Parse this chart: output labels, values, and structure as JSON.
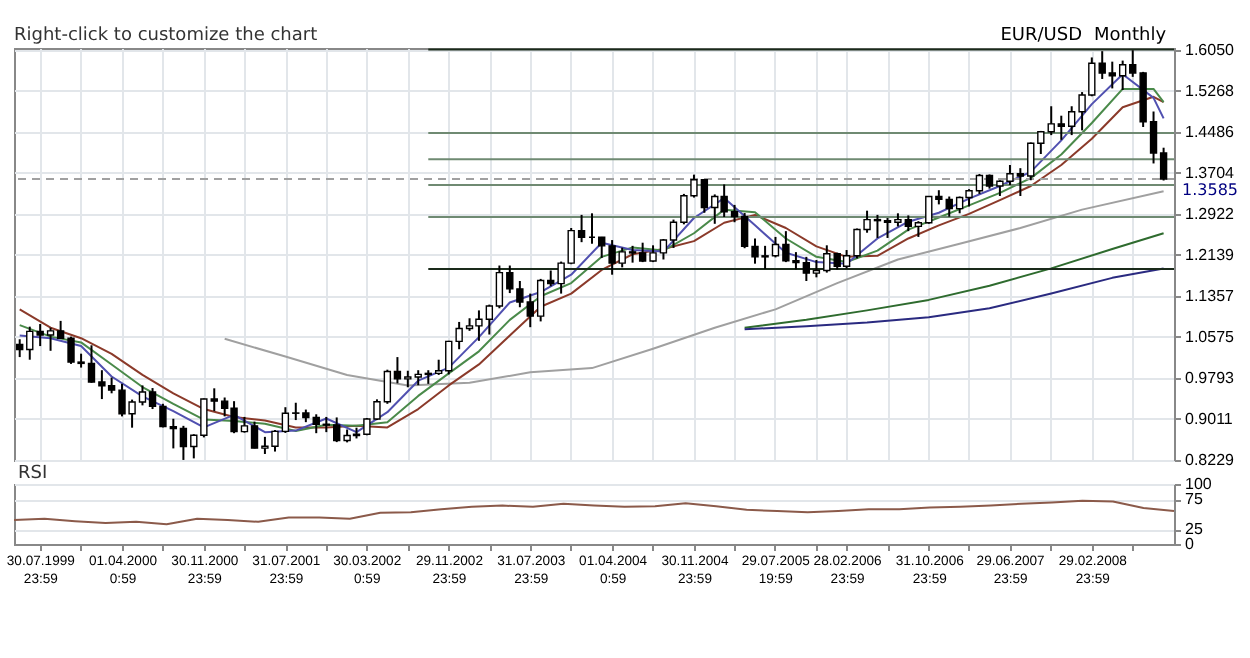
{
  "chart_data": [
    {
      "type": "candlestick",
      "title": "EUR/USD",
      "subtitle": "Monthly",
      "annotations": [
        "Right-click to customize the chart"
      ],
      "color": "#000000",
      "x": [
        "1999-06",
        "1999-07",
        "1999-08",
        "1999-09",
        "1999-10",
        "1999-11",
        "1999-12",
        "2000-01",
        "2000-02",
        "2000-03",
        "2000-04",
        "2000-05",
        "2000-06",
        "2000-07",
        "2000-08",
        "2000-09",
        "2000-10",
        "2000-11",
        "2000-12",
        "2001-01",
        "2001-02",
        "2001-03",
        "2001-04",
        "2001-05",
        "2001-06",
        "2001-07",
        "2001-08",
        "2001-09",
        "2001-10",
        "2001-11",
        "2001-12",
        "2002-01",
        "2002-02",
        "2002-03",
        "2002-04",
        "2002-05",
        "2002-06",
        "2002-07",
        "2002-08",
        "2002-09",
        "2002-10",
        "2002-11",
        "2002-12",
        "2003-01",
        "2003-02",
        "2003-03",
        "2003-04",
        "2003-05",
        "2003-06",
        "2003-07",
        "2003-08",
        "2003-09",
        "2003-10",
        "2003-11",
        "2003-12",
        "2004-01",
        "2004-02",
        "2004-03",
        "2004-04",
        "2004-05",
        "2004-06",
        "2004-07",
        "2004-08",
        "2004-09",
        "2004-10",
        "2004-11",
        "2004-12",
        "2005-01",
        "2005-02",
        "2005-03",
        "2005-04",
        "2005-05",
        "2005-06",
        "2005-07",
        "2005-08",
        "2005-09",
        "2005-10",
        "2005-11",
        "2005-12",
        "2006-01",
        "2006-02",
        "2006-03",
        "2006-04",
        "2006-05",
        "2006-06",
        "2006-07",
        "2006-08",
        "2006-09",
        "2006-10",
        "2006-11",
        "2006-12",
        "2007-01",
        "2007-02",
        "2007-03",
        "2007-04",
        "2007-05",
        "2007-06",
        "2007-07",
        "2007-08",
        "2007-09",
        "2007-10",
        "2007-11",
        "2007-12",
        "2008-01",
        "2008-02",
        "2008-03",
        "2008-04",
        "2008-05",
        "2008-06",
        "2008-07",
        "2008-08",
        "2008-09",
        "2008-10"
      ],
      "ohlc": [
        [
          1.043,
          1.053,
          1.019,
          1.0335
        ],
        [
          1.0335,
          1.077,
          1.014,
          1.068
        ],
        [
          1.068,
          1.082,
          1.04,
          1.061
        ],
        [
          1.061,
          1.075,
          1.031,
          1.069
        ],
        [
          1.069,
          1.088,
          1.054,
          1.055
        ],
        [
          1.055,
          1.058,
          1.006,
          1.0095
        ],
        [
          1.0095,
          1.0255,
          0.999,
          1.007
        ],
        [
          1.007,
          1.0415,
          0.97,
          0.9715
        ],
        [
          0.9715,
          0.994,
          0.939,
          0.9645
        ],
        [
          0.9645,
          0.98,
          0.95,
          0.956
        ],
        [
          0.956,
          0.968,
          0.906,
          0.911
        ],
        [
          0.911,
          0.938,
          0.8845,
          0.9335
        ],
        [
          0.9335,
          0.965,
          0.927,
          0.9525
        ],
        [
          0.9525,
          0.96,
          0.92,
          0.925
        ],
        [
          0.925,
          0.93,
          0.885,
          0.8865
        ],
        [
          0.8865,
          0.9015,
          0.845,
          0.883
        ],
        [
          0.883,
          0.888,
          0.823,
          0.8485
        ],
        [
          0.8485,
          0.872,
          0.826,
          0.87
        ],
        [
          0.87,
          0.94,
          0.866,
          0.939
        ],
        [
          0.939,
          0.9595,
          0.916,
          0.935
        ],
        [
          0.935,
          0.942,
          0.906,
          0.9215
        ],
        [
          0.9215,
          0.935,
          0.874,
          0.877
        ],
        [
          0.877,
          0.905,
          0.875,
          0.888
        ],
        [
          0.888,
          0.896,
          0.845,
          0.8455
        ],
        [
          0.8455,
          0.867,
          0.8344,
          0.849
        ],
        [
          0.849,
          0.88,
          0.839,
          0.8775
        ],
        [
          0.8775,
          0.9235,
          0.8745,
          0.912
        ],
        [
          0.912,
          0.932,
          0.899,
          0.9125
        ],
        [
          0.9125,
          0.919,
          0.895,
          0.904
        ],
        [
          0.904,
          0.91,
          0.874,
          0.891
        ],
        [
          0.891,
          0.905,
          0.876,
          0.8895
        ],
        [
          0.8895,
          0.904,
          0.857,
          0.86
        ],
        [
          0.86,
          0.881,
          0.8565,
          0.8695
        ],
        [
          0.8695,
          0.8845,
          0.864,
          0.872
        ],
        [
          0.872,
          0.903,
          0.87,
          0.901
        ],
        [
          0.901,
          0.9385,
          0.899,
          0.934
        ],
        [
          0.934,
          0.995,
          0.93,
          0.9915
        ],
        [
          0.9915,
          1.019,
          0.969,
          0.9775
        ],
        [
          0.9775,
          0.993,
          0.9615,
          0.981
        ],
        [
          0.981,
          0.994,
          0.9655,
          0.986
        ],
        [
          0.986,
          0.994,
          0.968,
          0.988
        ],
        [
          0.988,
          1.014,
          0.985,
          0.993
        ],
        [
          0.993,
          1.05,
          0.986,
          1.049
        ],
        [
          1.049,
          1.086,
          1.034,
          1.0735
        ],
        [
          1.0735,
          1.093,
          1.069,
          1.0785
        ],
        [
          1.0785,
          1.108,
          1.05,
          1.091
        ],
        [
          1.091,
          1.119,
          1.062,
          1.1165
        ],
        [
          1.1165,
          1.1935,
          1.112,
          1.18
        ],
        [
          1.18,
          1.1935,
          1.141,
          1.149
        ],
        [
          1.149,
          1.164,
          1.114,
          1.124
        ],
        [
          1.124,
          1.14,
          1.076,
          1.097
        ],
        [
          1.097,
          1.168,
          1.087,
          1.165
        ],
        [
          1.165,
          1.184,
          1.154,
          1.159
        ],
        [
          1.159,
          1.201,
          1.14,
          1.198
        ],
        [
          1.198,
          1.265,
          1.196,
          1.26
        ],
        [
          1.26,
          1.29,
          1.238,
          1.2475
        ],
        [
          1.2475,
          1.293,
          1.235,
          1.2475
        ],
        [
          1.2475,
          1.248,
          1.208,
          1.231
        ],
        [
          1.231,
          1.242,
          1.176,
          1.198
        ],
        [
          1.198,
          1.2275,
          1.19,
          1.2195
        ],
        [
          1.2195,
          1.231,
          1.199,
          1.2175
        ],
        [
          1.2175,
          1.237,
          1.2,
          1.202
        ],
        [
          1.202,
          1.232,
          1.2,
          1.2175
        ],
        [
          1.2175,
          1.244,
          1.205,
          1.242
        ],
        [
          1.242,
          1.281,
          1.227,
          1.276
        ],
        [
          1.276,
          1.33,
          1.272,
          1.3265
        ],
        [
          1.3265,
          1.3667,
          1.323,
          1.357
        ],
        [
          1.357,
          1.358,
          1.294,
          1.304
        ],
        [
          1.304,
          1.329,
          1.273,
          1.325
        ],
        [
          1.325,
          1.348,
          1.286,
          1.296
        ],
        [
          1.296,
          1.309,
          1.276,
          1.287
        ],
        [
          1.287,
          1.2935,
          1.2265,
          1.23
        ],
        [
          1.23,
          1.245,
          1.197,
          1.21
        ],
        [
          1.21,
          1.231,
          1.187,
          1.212
        ],
        [
          1.212,
          1.248,
          1.209,
          1.2335
        ],
        [
          1.2335,
          1.259,
          1.2,
          1.2025
        ],
        [
          1.2025,
          1.219,
          1.186,
          1.199
        ],
        [
          1.199,
          1.21,
          1.164,
          1.179
        ],
        [
          1.179,
          1.204,
          1.171,
          1.184
        ],
        [
          1.184,
          1.232,
          1.18,
          1.216
        ],
        [
          1.216,
          1.218,
          1.186,
          1.192
        ],
        [
          1.192,
          1.223,
          1.188,
          1.212
        ],
        [
          1.212,
          1.264,
          1.207,
          1.262
        ],
        [
          1.262,
          1.298,
          1.256,
          1.281
        ],
        [
          1.281,
          1.29,
          1.246,
          1.279
        ],
        [
          1.279,
          1.284,
          1.246,
          1.276
        ],
        [
          1.276,
          1.293,
          1.268,
          1.281
        ],
        [
          1.281,
          1.289,
          1.259,
          1.268
        ],
        [
          1.268,
          1.278,
          1.248,
          1.275
        ],
        [
          1.275,
          1.326,
          1.273,
          1.325
        ],
        [
          1.325,
          1.337,
          1.31,
          1.3195
        ],
        [
          1.3195,
          1.325,
          1.2865,
          1.302
        ],
        [
          1.302,
          1.325,
          1.293,
          1.323
        ],
        [
          1.323,
          1.339,
          1.306,
          1.336
        ],
        [
          1.336,
          1.368,
          1.33,
          1.365
        ],
        [
          1.365,
          1.367,
          1.34,
          1.345
        ],
        [
          1.345,
          1.356,
          1.326,
          1.354
        ],
        [
          1.354,
          1.385,
          1.347,
          1.3685
        ],
        [
          1.3685,
          1.379,
          1.326,
          1.364
        ],
        [
          1.364,
          1.428,
          1.356,
          1.4265
        ],
        [
          1.4265,
          1.45,
          1.406,
          1.4485
        ],
        [
          1.4485,
          1.497,
          1.442,
          1.4635
        ],
        [
          1.4635,
          1.479,
          1.433,
          1.459
        ],
        [
          1.459,
          1.497,
          1.442,
          1.4865
        ],
        [
          1.4865,
          1.524,
          1.451,
          1.5185
        ],
        [
          1.5185,
          1.59,
          1.516,
          1.579
        ],
        [
          1.579,
          1.602,
          1.549,
          1.5605
        ],
        [
          1.5605,
          1.582,
          1.531,
          1.555
        ],
        [
          1.555,
          1.584,
          1.528,
          1.576
        ],
        [
          1.576,
          1.6038,
          1.553,
          1.5605
        ],
        [
          1.5605,
          1.5625,
          1.4575,
          1.4675
        ],
        [
          1.4675,
          1.487,
          1.388,
          1.408
        ],
        [
          1.408,
          1.418,
          1.3555,
          1.3585
        ]
      ],
      "series": [
        {
          "type": "line",
          "color": "#a0a0a0",
          "x": [
            "2001-02",
            "2001-08",
            "2002-02",
            "2002-08",
            "2003-02",
            "2003-08",
            "2004-02",
            "2004-08",
            "2005-02",
            "2005-08",
            "2006-02",
            "2006-08",
            "2007-02",
            "2007-08",
            "2008-02",
            "2008-10"
          ],
          "values": [
            1.054,
            1.02,
            0.985,
            0.965,
            0.97,
            0.99,
            0.998,
            1.035,
            1.075,
            1.11,
            1.16,
            1.205,
            1.235,
            1.265,
            1.3,
            1.335
          ]
        },
        {
          "type": "line",
          "color": "#2e6b2e",
          "x": [
            "2005-05",
            "2005-11",
            "2006-05",
            "2006-11",
            "2007-05",
            "2007-11",
            "2008-05",
            "2008-10"
          ],
          "values": [
            1.075,
            1.09,
            1.108,
            1.128,
            1.155,
            1.188,
            1.225,
            1.255
          ]
        },
        {
          "type": "line",
          "color": "#2a2a80",
          "x": [
            "2005-05",
            "2005-11",
            "2006-05",
            "2006-11",
            "2007-05",
            "2007-11",
            "2008-05",
            "2008-10"
          ],
          "values": [
            1.072,
            1.078,
            1.085,
            1.095,
            1.112,
            1.14,
            1.17,
            1.188
          ]
        },
        {
          "type": "line",
          "color": "#8b3a2a",
          "x": [
            "1999-06",
            "1999-09",
            "1999-12",
            "2000-03",
            "2000-06",
            "2000-09",
            "2000-12",
            "2001-03",
            "2001-06",
            "2001-09",
            "2001-12",
            "2002-03",
            "2002-06",
            "2002-09",
            "2002-12",
            "2003-03",
            "2003-06",
            "2003-09",
            "2003-12",
            "2004-03",
            "2004-06",
            "2004-09",
            "2004-12",
            "2005-03",
            "2005-06",
            "2005-09",
            "2005-12",
            "2006-03",
            "2006-06",
            "2006-09",
            "2006-12",
            "2007-03",
            "2007-06",
            "2007-09",
            "2007-12",
            "2008-03",
            "2008-06",
            "2008-09",
            "2008-10"
          ],
          "values": [
            1.11,
            1.075,
            1.055,
            1.025,
            0.985,
            0.95,
            0.92,
            0.905,
            0.898,
            0.885,
            0.885,
            0.888,
            0.885,
            0.92,
            0.965,
            1.005,
            1.06,
            1.115,
            1.14,
            1.185,
            1.215,
            1.225,
            1.24,
            1.275,
            1.29,
            1.265,
            1.23,
            1.21,
            1.212,
            1.245,
            1.27,
            1.292,
            1.318,
            1.345,
            1.385,
            1.435,
            1.495,
            1.515,
            1.505
          ]
        },
        {
          "type": "line",
          "color": "#4a8a4a",
          "x": [
            "1999-06",
            "1999-09",
            "1999-12",
            "2000-03",
            "2000-06",
            "2000-09",
            "2000-12",
            "2001-03",
            "2001-06",
            "2001-09",
            "2001-12",
            "2002-03",
            "2002-06",
            "2002-09",
            "2002-12",
            "2003-03",
            "2003-06",
            "2003-09",
            "2003-12",
            "2004-03",
            "2004-06",
            "2004-09",
            "2004-12",
            "2005-03",
            "2005-06",
            "2005-09",
            "2005-12",
            "2006-03",
            "2006-06",
            "2006-09",
            "2006-12",
            "2007-03",
            "2007-06",
            "2007-09",
            "2007-12",
            "2008-03",
            "2008-06",
            "2008-09",
            "2008-10"
          ],
          "values": [
            1.08,
            1.058,
            1.047,
            1.005,
            0.962,
            0.93,
            0.9,
            0.897,
            0.892,
            0.878,
            0.89,
            0.888,
            0.895,
            0.945,
            0.988,
            1.03,
            1.09,
            1.135,
            1.16,
            1.21,
            1.228,
            1.222,
            1.255,
            1.3,
            1.295,
            1.245,
            1.21,
            1.2,
            1.222,
            1.262,
            1.285,
            1.308,
            1.332,
            1.36,
            1.405,
            1.465,
            1.53,
            1.53,
            1.505
          ]
        },
        {
          "type": "line",
          "color": "#5050b0",
          "x": [
            "1999-06",
            "1999-09",
            "1999-12",
            "2000-03",
            "2000-06",
            "2000-09",
            "2000-12",
            "2001-03",
            "2001-06",
            "2001-09",
            "2001-12",
            "2002-03",
            "2002-06",
            "2002-09",
            "2002-12",
            "2003-03",
            "2003-06",
            "2003-09",
            "2003-12",
            "2004-03",
            "2004-06",
            "2004-09",
            "2004-12",
            "2005-03",
            "2005-06",
            "2005-09",
            "2005-12",
            "2006-03",
            "2006-06",
            "2006-09",
            "2006-12",
            "2007-03",
            "2007-06",
            "2007-09",
            "2007-12",
            "2008-03",
            "2008-06",
            "2008-09",
            "2008-10"
          ],
          "values": [
            1.06,
            1.055,
            1.04,
            0.982,
            0.944,
            0.916,
            0.885,
            0.909,
            0.876,
            0.879,
            0.902,
            0.876,
            0.914,
            0.974,
            0.999,
            1.057,
            1.123,
            1.143,
            1.176,
            1.237,
            1.223,
            1.22,
            1.284,
            1.322,
            1.27,
            1.218,
            1.2,
            1.197,
            1.245,
            1.277,
            1.294,
            1.321,
            1.345,
            1.372,
            1.432,
            1.501,
            1.558,
            1.513,
            1.474
          ]
        },
        {
          "type": "line",
          "color": "#1a2a1a",
          "x": [
            "2002-10",
            "2008-11"
          ],
          "values": [
            1.605,
            1.605
          ]
        },
        {
          "type": "line",
          "color": "#6f8a72",
          "x": [
            "2002-10",
            "2008-11"
          ],
          "values": [
            1.446,
            1.446
          ]
        },
        {
          "type": "line",
          "color": "#6f8a72",
          "x": [
            "2002-10",
            "2008-11"
          ],
          "values": [
            1.396,
            1.396
          ]
        },
        {
          "type": "line",
          "color": "#6f8a72",
          "x": [
            "2002-10",
            "2008-11"
          ],
          "values": [
            1.347,
            1.347
          ]
        },
        {
          "type": "line",
          "color": "#6f8a72",
          "x": [
            "2002-10",
            "2008-11"
          ],
          "values": [
            1.286,
            1.286
          ]
        },
        {
          "type": "line",
          "color": "#1a2a1a",
          "x": [
            "2002-10",
            "2008-11"
          ],
          "values": [
            1.187,
            1.187
          ]
        }
      ],
      "ref_lines": [
        {
          "axis": "y",
          "value": 1.3585,
          "label": "1.3585",
          "color": "#a0a0a0",
          "line_style": "dashed"
        }
      ],
      "xlim": [
        "1999-05-15",
        "2008-11-01"
      ],
      "xticks": [
        {
          "value": "1999-07-30T23:59",
          "label": "30.07.1999\n23:59"
        },
        {
          "value": "1999-11-30",
          "label": null
        },
        {
          "value": "2000-04-01T00:59",
          "label": "01.04.2000\n0:59"
        },
        {
          "value": "2000-07-31",
          "label": null
        },
        {
          "value": "2000-11-30T23:59",
          "label": "30.11.2000\n23:59"
        },
        {
          "value": "2001-03-30",
          "label": null
        },
        {
          "value": "2001-07-31T23:59",
          "label": "31.07.2001\n23:59"
        },
        {
          "value": "2001-11-30",
          "label": null
        },
        {
          "value": "2002-03-30T00:59",
          "label": "30.03.2002\n0:59"
        },
        {
          "value": "2002-07-31",
          "label": null
        },
        {
          "value": "2002-11-29T23:59",
          "label": "29.11.2002\n23:59"
        },
        {
          "value": "2003-03-31",
          "label": null
        },
        {
          "value": "2003-07-31T23:59",
          "label": "31.07.2003\n23:59"
        },
        {
          "value": "2003-11-28",
          "label": null
        },
        {
          "value": "2004-04-01T00:59",
          "label": "01.04.2004\n0:59"
        },
        {
          "value": "2004-07-30",
          "label": null
        },
        {
          "value": "2004-11-30T23:59",
          "label": "30.11.2004\n23:59"
        },
        {
          "value": "2005-03-31",
          "label": null
        },
        {
          "value": "2005-07-29T19:59",
          "label": "29.07.2005\n19:59"
        },
        {
          "value": "2005-11-30",
          "label": null
        },
        {
          "value": "2006-02-28T23:59",
          "label": "28.02.2006\n23:59"
        },
        {
          "value": "2006-06-30",
          "label": null
        },
        {
          "value": "2006-10-31T23:59",
          "label": "31.10.2006\n23:59"
        },
        {
          "value": "2007-02-28",
          "label": null
        },
        {
          "value": "2007-06-29T23:59",
          "label": "29.06.2007\n23:59"
        },
        {
          "value": "2007-10-31",
          "label": null
        },
        {
          "value": "2008-02-29T23:59",
          "label": "29.02.2008\n23:59"
        },
        {
          "value": "2008-06-30",
          "label": null
        }
      ],
      "ylim": [
        0.8229,
        1.608
      ],
      "yticks": [
        {
          "value": 1.605,
          "label": "1.6050"
        },
        {
          "value": 1.5268,
          "label": "1.5268"
        },
        {
          "value": 1.4486,
          "label": "1.4486"
        },
        {
          "value": 1.3704,
          "label": "1.3704"
        },
        {
          "value": 1.2922,
          "label": "1.2922"
        },
        {
          "value": 1.2139,
          "label": "1.2139"
        },
        {
          "value": 1.1357,
          "label": "1.1357"
        },
        {
          "value": 1.0575,
          "label": "1.0575"
        },
        {
          "value": 0.9793,
          "label": "0.9793"
        },
        {
          "value": 0.9011,
          "label": "0.9011"
        },
        {
          "value": 0.8229,
          "label": "0.8229"
        }
      ],
      "grid": true
    },
    {
      "type": "line",
      "title": "RSI",
      "categories": [
        null,
        null,
        null,
        null,
        null,
        null,
        null,
        null,
        null,
        null,
        null,
        null,
        null,
        null,
        null,
        null,
        null,
        null,
        null,
        null,
        null,
        null,
        null,
        null,
        null,
        null,
        null,
        null,
        null,
        null,
        null,
        null,
        null,
        null,
        null,
        null,
        null,
        null,
        null
      ],
      "series": [
        {
          "type": "line",
          "color": "#8b5a4a",
          "values": [
            40,
            42,
            38,
            35,
            37,
            33,
            42,
            40,
            37,
            44,
            44,
            42,
            52,
            53,
            58,
            62,
            64,
            62,
            67,
            64,
            62,
            63,
            68,
            63,
            57,
            55,
            53,
            55,
            58,
            58,
            61,
            62,
            64,
            67,
            69,
            72,
            71,
            60,
            55
          ]
        }
      ],
      "ylim": [
        0,
        100
      ],
      "yticks": [
        0,
        25,
        75,
        100
      ],
      "grid": "y"
    }
  ]
}
